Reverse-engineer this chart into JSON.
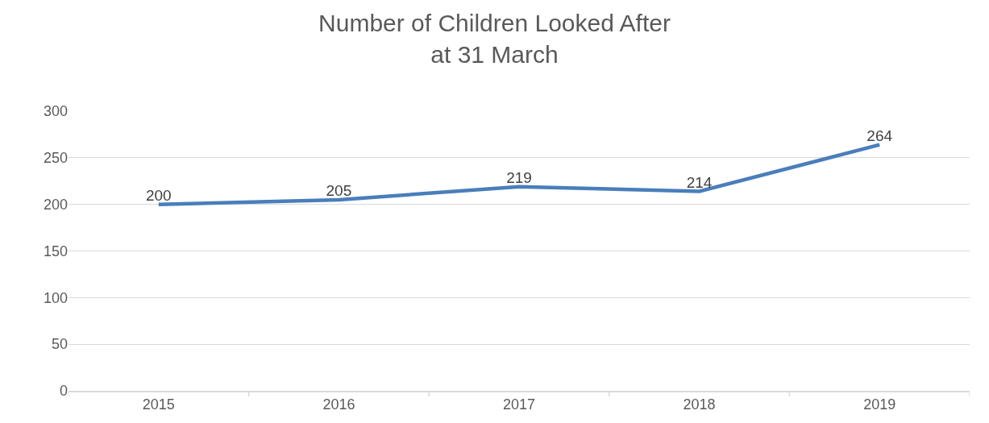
{
  "chart_data": {
    "type": "line",
    "title": "Number of Children Looked After\nat 31 March",
    "categories": [
      "2015",
      "2016",
      "2017",
      "2018",
      "2019"
    ],
    "series": [
      {
        "color": "#4a7ebb",
        "values": [
          200,
          205,
          219,
          214,
          264
        ]
      }
    ],
    "ylim": [
      0,
      300
    ],
    "yticks": [
      0,
      50,
      100,
      150,
      200,
      250,
      300
    ],
    "grid": "y",
    "data_labels": true,
    "marker": "none",
    "line_style": "solid"
  }
}
